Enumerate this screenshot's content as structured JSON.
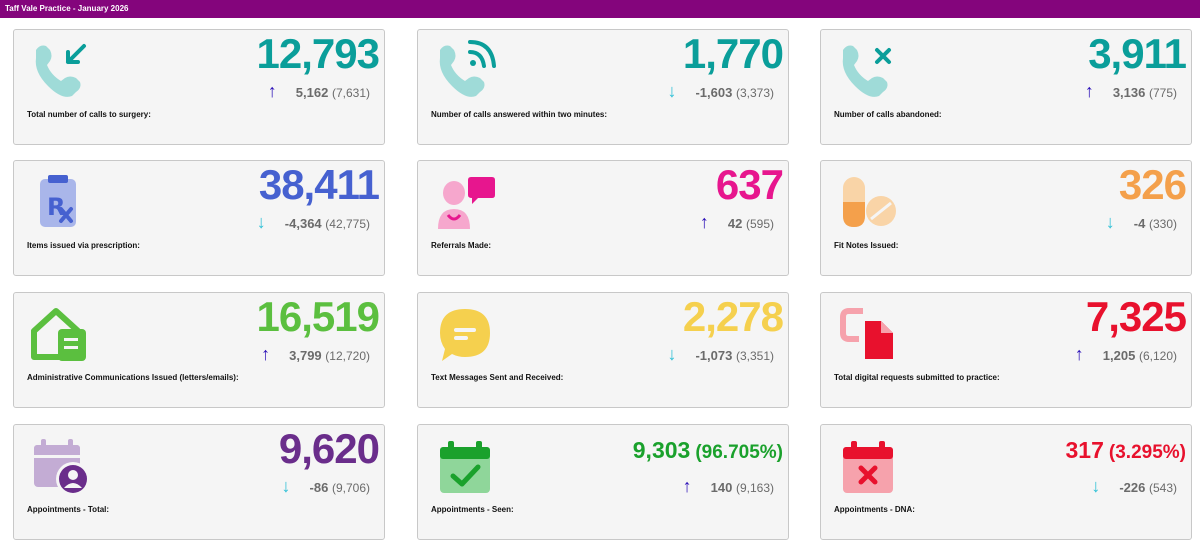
{
  "header": {
    "title": "Taff Vale Practice - January 2026"
  },
  "colors": {
    "topbar": "#84057c",
    "teal": "#0a9e9a",
    "blue": "#4661d0",
    "magenta": "#e7168e",
    "orange": "#f4a04b",
    "green": "#5bbf3f",
    "yellow": "#f5d04e",
    "red": "#e8112d",
    "purple": "#6a2d8b",
    "dark_green": "#1aa12c",
    "up_arrow": "#2c11b8",
    "down_arrow": "#2ec0d6"
  },
  "cards": [
    {
      "label": "Total number of calls to surgery:",
      "value": "12,793",
      "change": "5,162",
      "previous": "(7,631)",
      "direction": "up",
      "arrow": "↑",
      "icon": "incoming-call-icon"
    },
    {
      "label": "Number of calls answered within two minutes:",
      "value": "1,770",
      "change": "-1,603",
      "previous": "(3,373)",
      "direction": "down",
      "arrow": "↓",
      "icon": "active-call-icon"
    },
    {
      "label": "Number of calls abandoned:",
      "value": "3,911",
      "change": "3,136",
      "previous": "(775)",
      "direction": "up",
      "arrow": "↑",
      "icon": "missed-call-icon"
    },
    {
      "label": "Items issued via prescription:",
      "value": "38,411",
      "change": "-4,364",
      "previous": "(42,775)",
      "direction": "down",
      "arrow": "↓",
      "icon": "prescription-icon"
    },
    {
      "label": "Referrals Made:",
      "value": "637",
      "change": "42",
      "previous": "(595)",
      "direction": "up",
      "arrow": "↑",
      "icon": "referral-icon"
    },
    {
      "label": "Fit Notes Issued:",
      "value": "326",
      "change": "-4",
      "previous": "(330)",
      "direction": "down",
      "arrow": "↓",
      "icon": "pills-icon"
    },
    {
      "label": "Administrative Communications Issued (letters/emails):",
      "value": "16,519",
      "change": "3,799",
      "previous": "(12,720)",
      "direction": "up",
      "arrow": "↑",
      "icon": "house-document-icon"
    },
    {
      "label": "Text Messages Sent and Received:",
      "value": "2,278",
      "change": "-1,073",
      "previous": "(3,351)",
      "direction": "down",
      "arrow": "↓",
      "icon": "message-bubble-icon"
    },
    {
      "label": "Total digital requests submitted to practice:",
      "value": "7,325",
      "change": "1,205",
      "previous": "(6,120)",
      "direction": "up",
      "arrow": "↑",
      "icon": "digital-request-icon"
    },
    {
      "label": "Appointments - Total:",
      "value": "9,620",
      "change": "-86",
      "previous": "(9,706)",
      "direction": "down",
      "arrow": "↓",
      "icon": "calendar-user-icon"
    },
    {
      "label": "Appointments - Seen:",
      "value": "9,303",
      "percent": "(96.705%)",
      "change": "140",
      "previous": "(9,163)",
      "direction": "up",
      "arrow": "↑",
      "icon": "calendar-check-icon"
    },
    {
      "label": "Appointments - DNA:",
      "value": "317",
      "percent": "(3.295%)",
      "change": "-226",
      "previous": "(543)",
      "direction": "down",
      "arrow": "↓",
      "icon": "calendar-cross-icon"
    }
  ]
}
